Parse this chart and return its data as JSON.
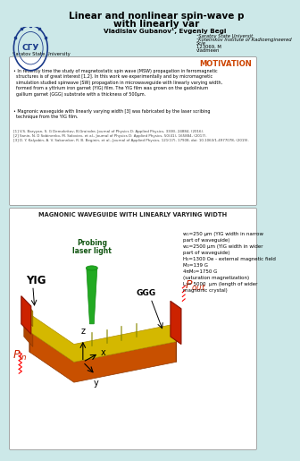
{
  "bg_color": "#cce8e8",
  "white": "#ffffff",
  "title_line1": "Linear and nonlinear spin-wave p",
  "title_line2": "with linearly var",
  "authors": "Vladislav Gubanov¹, Evgeniy Begi",
  "affil1": "¹Saratov State Universit",
  "affil2": "²Kotelnikov Institute of Radioengineered",
  "affil3": "Scie",
  "contact1": "123069, M",
  "contact2": "vladmeen",
  "institution": "Saratov State University",
  "motivation_title": "MOTIVATION",
  "waveguide_title": "MAGNONIC WAVEGUIDE WITH LINEARLY VARYING WIDTH",
  "mot_bullet1": "• In recently time the study of magnetostatic spin wave (MSW) propagation in ferromagnetic\n  structures is of great interest [1,2]. In this work we experimentally and by micromagnetic\n  simulation studied spinwave (SW) propagation in microwaveguide with linearly varying width,\n  formed from a yttrium iron garnet (YIG) film. The YIG film was grown on the gadolinium\n  gallium garnet (GGG) substrate with a thickness of 500μm.",
  "mot_bullet2": "• Magnonic waveguide with linearly varying width [3] was fabricated by the laser scribing\n  technique from the YIG film.",
  "refs": "[1] V.S. Baryyan, S. G Demokritov, B.Graindre, Journal of Physics D: Applied Physics, 33(8), 24884, (2016).\n[2] Sanin, N. D Sobinenko, M. Soloviev, et al., Journal of Physics D: Applied Physics, 50(41), 165884, (2017).\n[3] D. Y. Kalyabin, A. V. Sakonnker, R. B. Beginin, et al., Journal of Applied Physics, 121(17), 17908, doi: 10.1063/1.4977078, (2019).",
  "params": "w₁=250 μm (YIG width in narrow\npart of waveguide)\nw₂=2500 μm (YIG width in wider\npart of waveguide)\nH₀=1300 Oe - external magnetic field\nM₀=139 G\n4πM₀=1750 G\n(saturation magnetization)\nL₁= 5000  μm (length of wider\nmagnonic crystal)"
}
